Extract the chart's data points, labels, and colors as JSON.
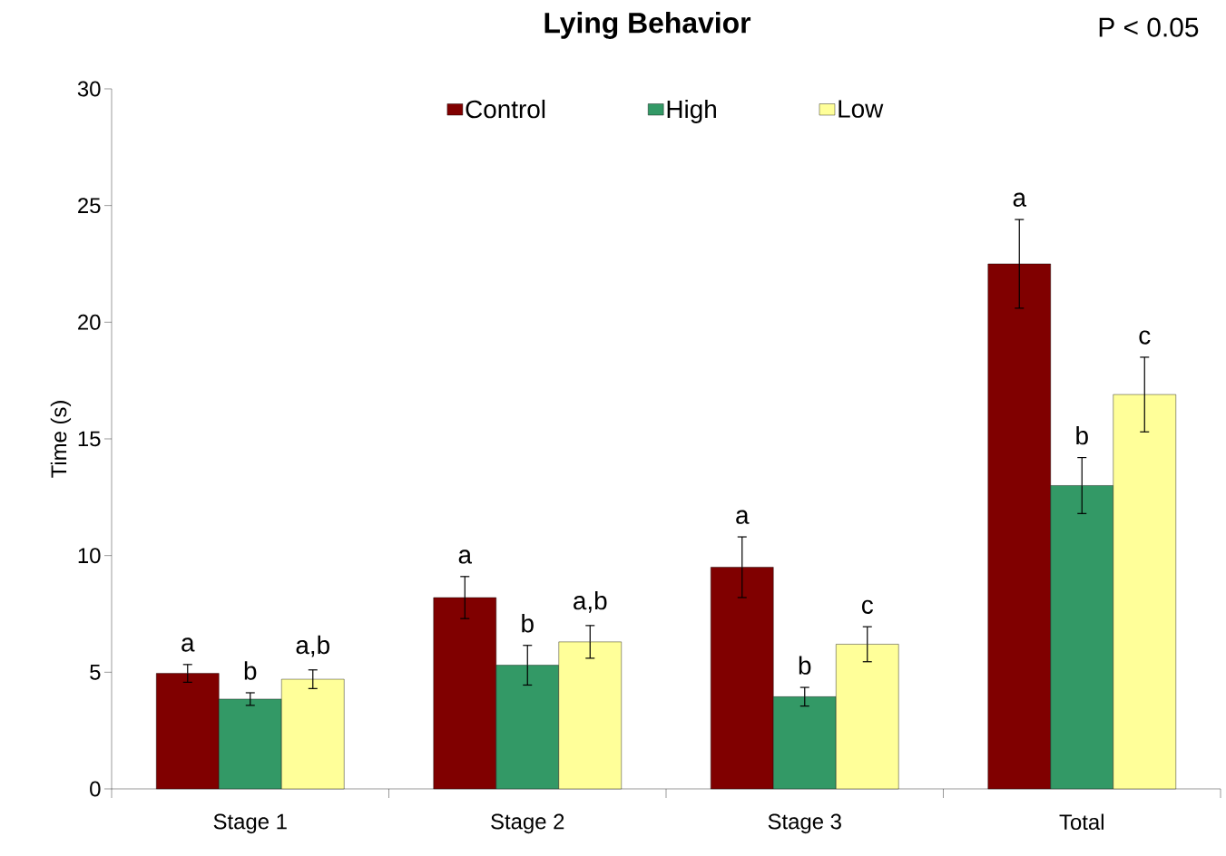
{
  "chart_data": {
    "type": "bar",
    "title": "Lying Behavior",
    "ylabel": "Time (s)",
    "categories": [
      "Stage 1",
      "Stage 2",
      "Stage 3",
      "Total"
    ],
    "series": [
      {
        "name": "Control",
        "color": "#800000",
        "values": [
          4.95,
          8.2,
          9.5,
          22.5
        ],
        "errors": [
          0.38,
          0.9,
          1.3,
          1.9
        ]
      },
      {
        "name": "High",
        "color": "#339966",
        "values": [
          3.85,
          5.3,
          3.95,
          13.0
        ],
        "errors": [
          0.27,
          0.85,
          0.4,
          1.2
        ]
      },
      {
        "name": "Low",
        "color": "#ffff99",
        "values": [
          4.7,
          6.3,
          6.2,
          16.9
        ],
        "errors": [
          0.4,
          0.7,
          0.75,
          1.6
        ]
      }
    ],
    "ylim": [
      0,
      30
    ],
    "yticks": [
      0,
      5,
      10,
      15,
      20,
      25,
      30
    ],
    "legend": "top",
    "annotations": [
      "a",
      "b",
      "a,b",
      "a",
      "b",
      "a,b",
      "a",
      "b",
      "c",
      "a",
      "b",
      "c",
      "P < 0.05"
    ]
  }
}
